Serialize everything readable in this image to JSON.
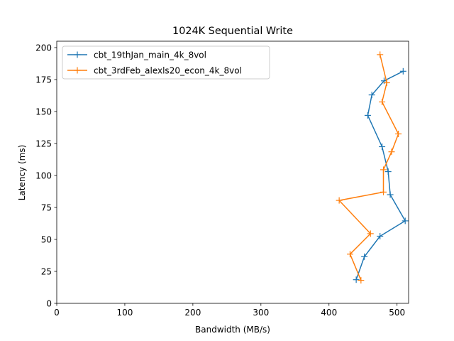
{
  "chart_data": {
    "type": "line",
    "title": "1024K  Sequential Write",
    "xlabel": "Bandwidth (MB/s)",
    "ylabel": "Latency (ms)",
    "xlim": [
      0,
      517
    ],
    "ylim": [
      0,
      205
    ],
    "xticks": [
      0,
      100,
      200,
      300,
      400,
      500
    ],
    "yticks": [
      0,
      25,
      50,
      75,
      100,
      125,
      150,
      175,
      200
    ],
    "grid": false,
    "legend_position": "upper-left",
    "series": [
      {
        "name": "cbt_19thJan_main_4k_8vol",
        "color": "#1f77b4",
        "marker": "+",
        "points": [
          [
            440,
            18.5
          ],
          [
            452,
            36.5
          ],
          [
            475,
            52.5
          ],
          [
            512,
            64.5
          ],
          [
            490,
            85
          ],
          [
            487,
            103
          ],
          [
            478,
            122.5
          ],
          [
            457,
            147
          ],
          [
            463,
            163
          ],
          [
            481,
            174
          ],
          [
            509,
            181.5
          ]
        ]
      },
      {
        "name": "cbt_3rdFeb_alexls20_econ_4k_8vol",
        "color": "#ff7f0e",
        "marker": "+",
        "points": [
          [
            447,
            18
          ],
          [
            431,
            38.5
          ],
          [
            461,
            54.5
          ],
          [
            415,
            80.5
          ],
          [
            480,
            87
          ],
          [
            480,
            104.5
          ],
          [
            492,
            118.5
          ],
          [
            502,
            132.5
          ],
          [
            478,
            157.5
          ],
          [
            485,
            172.5
          ],
          [
            475,
            194.5
          ]
        ]
      }
    ]
  }
}
